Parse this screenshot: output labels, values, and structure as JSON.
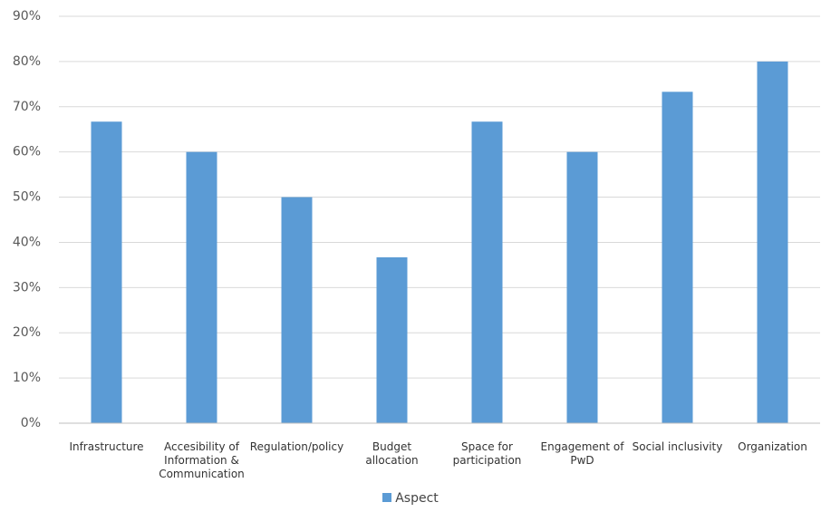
{
  "chart_data": {
    "type": "bar",
    "categories": [
      "Infrastructure",
      "Accesibility of Information & Communication",
      "Regulation/policy",
      "Budget allocation",
      "Space for participation",
      "Engagement of PwD",
      "Social inclusivity",
      "Organization"
    ],
    "series": [
      {
        "name": "Aspect",
        "color": "#5b9bd5",
        "values": [
          66.7,
          60,
          50,
          36.7,
          66.7,
          60,
          73.3,
          80
        ]
      }
    ],
    "ylim": [
      0,
      90
    ],
    "yticks": [
      {
        "value": 0,
        "label": "0%"
      },
      {
        "value": 10,
        "label": "10%"
      },
      {
        "value": 20,
        "label": "20%"
      },
      {
        "value": 30,
        "label": "30%"
      },
      {
        "value": 40,
        "label": "40%"
      },
      {
        "value": 50,
        "label": "50%"
      },
      {
        "value": 60,
        "label": "60%"
      },
      {
        "value": 70,
        "label": "70%"
      },
      {
        "value": 80,
        "label": "80%"
      },
      {
        "value": 90,
        "label": "90%"
      }
    ],
    "grid": true,
    "legend": "bottom"
  }
}
